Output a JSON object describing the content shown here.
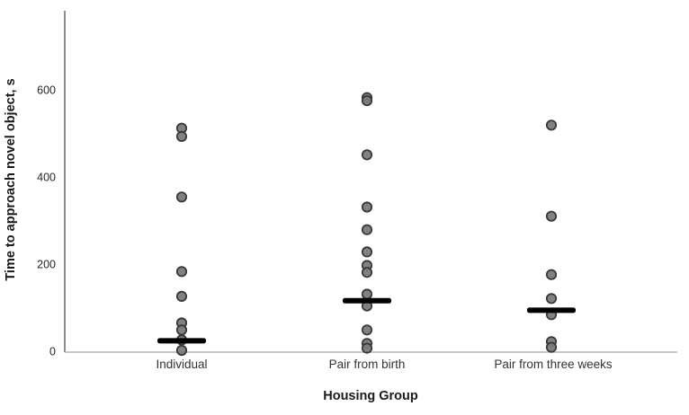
{
  "chart_data": {
    "type": "scatter",
    "title": "",
    "xlabel": "Housing Group",
    "ylabel": "Time to approach novel object, s",
    "categories": [
      "Individual",
      "Pair from birth",
      "Pair from three weeks"
    ],
    "yticks": [
      0,
      200,
      400,
      600
    ],
    "ylim": [
      0,
      780
    ],
    "grid": false,
    "legend": "none",
    "series": [
      {
        "name": "Individual",
        "values": [
          513,
          494,
          355,
          184,
          127,
          66,
          50,
          27,
          3
        ],
        "median_bar": 25
      },
      {
        "name": "Pair from birth",
        "values": [
          583,
          576,
          452,
          332,
          280,
          229,
          198,
          182,
          132,
          105,
          50,
          19,
          8
        ],
        "median_bar": 117
      },
      {
        "name": "Pair from three weeks",
        "values": [
          520,
          311,
          177,
          122,
          85,
          23,
          10
        ],
        "median_bar": 95
      }
    ],
    "colors": {
      "point_fill": "#7a7a7a",
      "point_stroke": "#383838",
      "median_bar": "#000000",
      "y_axis_line": "#8c8c8c",
      "x_axis_line": "#b4b4b4"
    }
  }
}
